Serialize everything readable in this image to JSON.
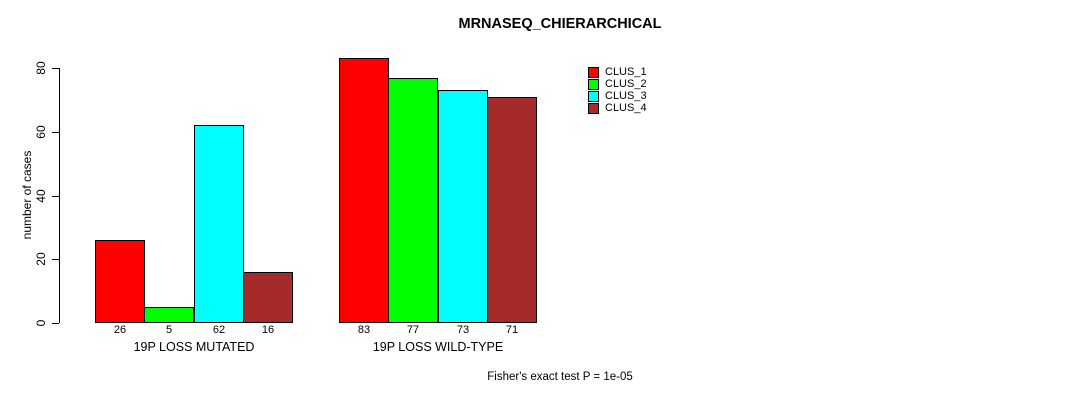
{
  "window": {
    "background": "#ffffff",
    "text_color": "#000000"
  },
  "chart_data": {
    "type": "bar",
    "title": "MRNASEQ_CHIERARCHICAL",
    "xlabel": "",
    "ylabel": "number of cases",
    "ylim": [
      0,
      80
    ],
    "yticks": [
      0,
      20,
      40,
      60,
      80
    ],
    "grid": false,
    "categories": [
      "19P LOSS MUTATED",
      "19P LOSS WILD-TYPE"
    ],
    "series": [
      {
        "name": "CLUS_1",
        "color": "#ff0000",
        "values": [
          26,
          83
        ]
      },
      {
        "name": "CLUS_2",
        "color": "#00ff00",
        "values": [
          5,
          77
        ]
      },
      {
        "name": "CLUS_3",
        "color": "#00ffff",
        "values": [
          62,
          73
        ]
      },
      {
        "name": "CLUS_4",
        "color": "#a52a2a",
        "values": [
          16,
          71
        ]
      }
    ],
    "value_labels_shown": true,
    "legend": {
      "position": "top-right",
      "entries": [
        "CLUS_1",
        "CLUS_2",
        "CLUS_3",
        "CLUS_4"
      ]
    },
    "annotation": "Fisher's exact test P = 1e-05",
    "axis_color": "#000000",
    "bar_border_color": "#000000"
  }
}
